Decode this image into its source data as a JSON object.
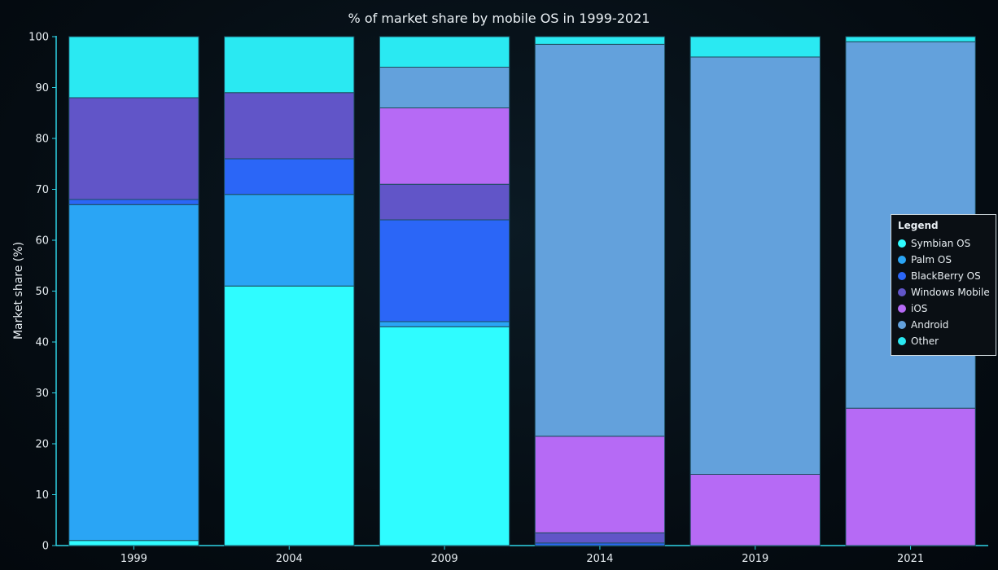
{
  "chart_data": {
    "type": "bar",
    "stacked": true,
    "title": "% of market share by mobile OS in 1999-2021",
    "xlabel": "",
    "ylabel": "Market share (%)",
    "ylim": [
      0,
      100
    ],
    "yticks": [
      0,
      10,
      20,
      30,
      40,
      50,
      60,
      70,
      80,
      90,
      100
    ],
    "grid": false,
    "categories": [
      "1999",
      "2004",
      "2009",
      "2014",
      "2019",
      "2021"
    ],
    "series": [
      {
        "name": "Symbian OS",
        "color": "#2ffcff",
        "values": [
          1,
          51,
          43,
          0,
          0,
          0
        ]
      },
      {
        "name": "Palm OS",
        "color": "#2aa5f5",
        "values": [
          66,
          18,
          1,
          0,
          0,
          0
        ]
      },
      {
        "name": "BlackBerry OS",
        "color": "#2b66f7",
        "values": [
          1,
          7,
          20,
          0.5,
          0,
          0
        ]
      },
      {
        "name": "Windows Mobile",
        "color": "#6155c8",
        "values": [
          20,
          13,
          7,
          2,
          0,
          0
        ]
      },
      {
        "name": "iOS",
        "color": "#b66af5",
        "values": [
          0,
          0,
          15,
          19,
          14,
          27
        ]
      },
      {
        "name": "Android",
        "color": "#63a1dc",
        "values": [
          0,
          0,
          8,
          77,
          82,
          72
        ]
      },
      {
        "name": "Other",
        "color": "#2ae9f2",
        "values": [
          12,
          11,
          6,
          1.5,
          4,
          1
        ]
      }
    ],
    "legend": {
      "title": "Legend",
      "position": "right"
    }
  }
}
